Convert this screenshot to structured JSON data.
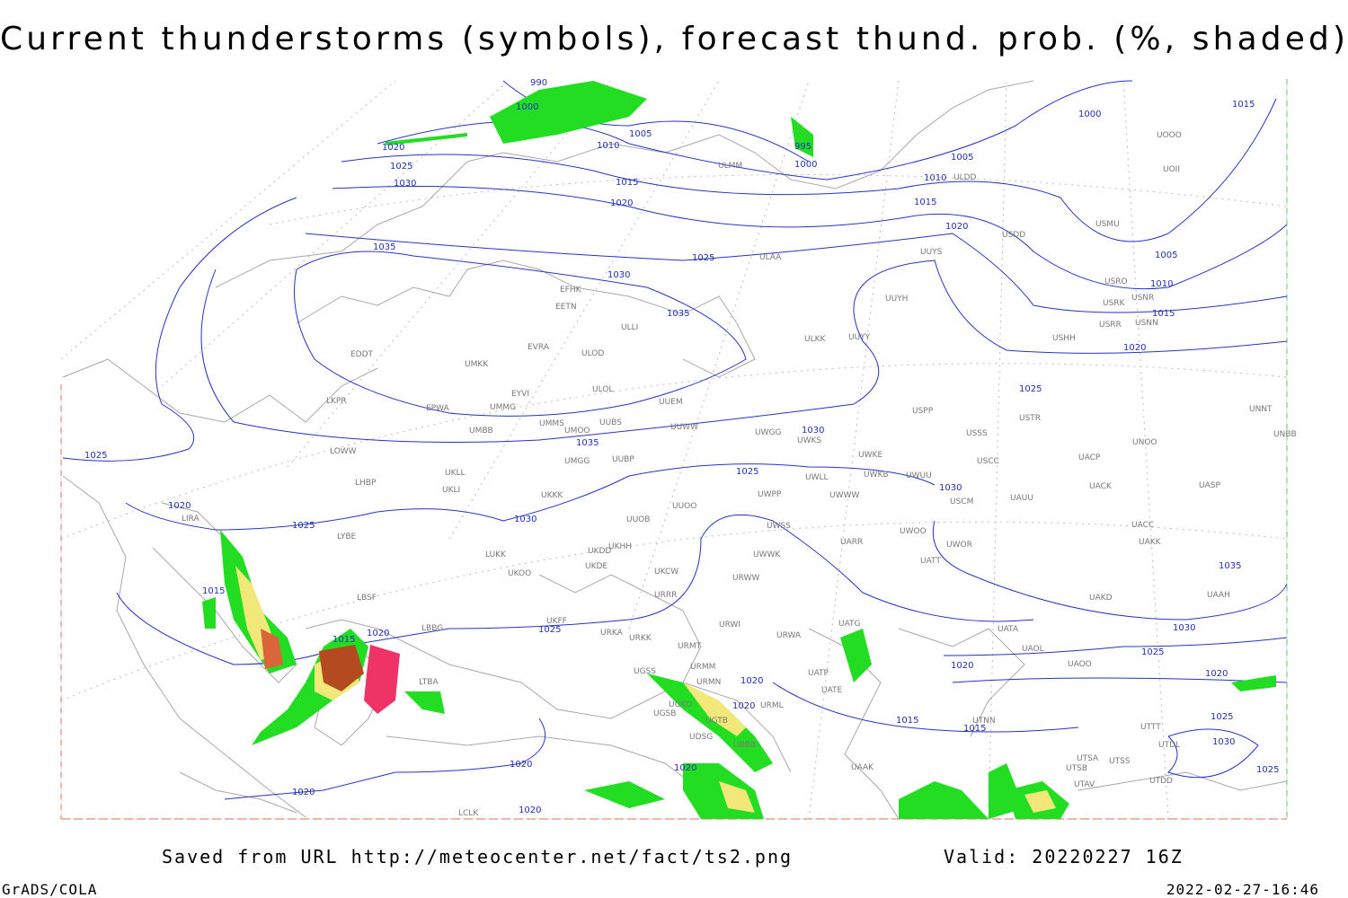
{
  "title": "Current thunderstorms (symbols), forecast thund. prob. (%, shaded)",
  "footer": {
    "source": "Saved from URL http://meteocenter.net/fact/ts2.png",
    "valid": "Valid: 20220227 16Z",
    "software": "GrADS/COLA",
    "timestamp": "2022-02-27-16:46"
  },
  "isobar_labels": [
    990,
    1000,
    1005,
    1010,
    995,
    1000,
    1020,
    1025,
    1030,
    1015,
    1020,
    1035,
    1025,
    1030,
    1035,
    1000,
    1015,
    1005,
    1010,
    1015,
    1020,
    1005,
    1010,
    1015,
    1020,
    1025,
    1030,
    1035,
    1025,
    1025,
    1030,
    1020,
    1030,
    1025,
    1035,
    1015,
    1030,
    1025,
    1020,
    1025,
    1020,
    1015,
    1020,
    1020,
    1015,
    1015,
    1020,
    1020,
    1020,
    1020,
    1020,
    1025,
    1030,
    1025
  ],
  "stations": [
    "EDDT",
    "EPWA",
    "EYVI",
    "UMMG",
    "UMKK",
    "EVRA",
    "ULOD",
    "EFHK",
    "EETN",
    "ULLI",
    "ULOL",
    "UUEM",
    "UMMS",
    "UMOO",
    "UUBS",
    "UMBB",
    "UUWW",
    "UKLL",
    "UKLI",
    "UMGG",
    "UUBP",
    "UKKK",
    "UUOO",
    "UUOB",
    "LKPR",
    "LOWW",
    "LHBP",
    "LIRA",
    "LYBE",
    "LBSF",
    "LBBG",
    "LTBA",
    "UKOO",
    "LUKK",
    "UKHH",
    "UKDD",
    "UKDE",
    "UKFF",
    "URKA",
    "URKK",
    "UKCW",
    "URRR",
    "URMT",
    "URMM",
    "URMN",
    "UGSS",
    "UGKO",
    "UGSB",
    "UGTB",
    "UDSG",
    "UBBB",
    "URML",
    "URWA",
    "URWI",
    "URWW",
    "UWWK",
    "UWSS",
    "UWPP",
    "UWLL",
    "UWWW",
    "UWGG",
    "UWKS",
    "UWKE",
    "UWKB",
    "UWUU",
    "UATG",
    "UATP",
    "UATE",
    "UAAK",
    "UARR",
    "UWOO",
    "UWOR",
    "UATT",
    "USCM",
    "UAUU",
    "USSS",
    "USCC",
    "USTR",
    "USPP",
    "UAOO",
    "UAOL",
    "UATA",
    "UAKD",
    "UACC",
    "UAKK",
    "UACK",
    "UACP",
    "UNOO",
    "UASP",
    "UNNT",
    "UNBB",
    "UAAH",
    "UTNN",
    "UTSA",
    "UTSS",
    "UTSB",
    "UTAV",
    "UTDD",
    "UTDL",
    "UTTT",
    "LCLK",
    "ULAA",
    "UUYS",
    "UUYH",
    "ULKK",
    "UUYY",
    "ULMM",
    "ULDD",
    "USDD",
    "USMU",
    "USRO",
    "USNR",
    "USRK",
    "USRR",
    "USNN",
    "USHH",
    "UOOO",
    "UOII"
  ]
}
